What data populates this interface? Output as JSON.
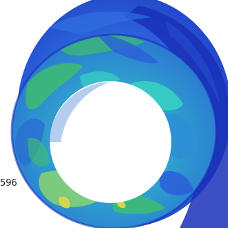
{
  "viewport": {
    "probe_value": "596"
  },
  "colors": {
    "background": "#ffffff",
    "outer_shell_dark": "#1a2fb8",
    "outer_shell_mid": "#2a5fd8",
    "outer_shell_light": "#3f86e6",
    "inner_surface_base": "#2f8fd4",
    "patch_green": "#3fbf6a",
    "patch_cyan": "#37d3c1",
    "patch_lightgreen": "#8fd86a",
    "patch_yellow": "#d7d84a",
    "hole": "#ffffff"
  },
  "model": {
    "shape": "ring / truncated cone shell",
    "contour_palette": "blue-cyan-green-yellow"
  }
}
